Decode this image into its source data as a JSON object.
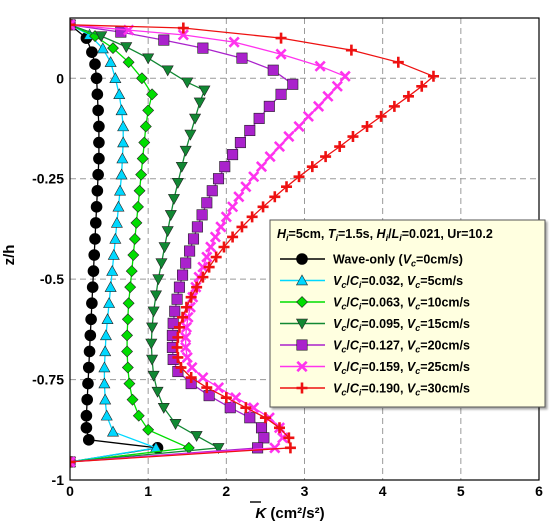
{
  "chart_data": {
    "type": "line",
    "ylabel": "z/h",
    "xlabel_main": "K",
    "xlabel_unit": " (cm²/s²)",
    "xlim": [
      0,
      6
    ],
    "ylim": [
      -1,
      0.15
    ],
    "xticks": [
      0,
      1,
      2,
      3,
      4,
      5,
      6
    ],
    "yticks": [
      {
        "value": 0,
        "label": "0"
      },
      {
        "value": -0.25,
        "label": "-0.25"
      },
      {
        "value": -0.5,
        "label": "-0.5"
      },
      {
        "value": -0.75,
        "label": "-0.75"
      },
      {
        "value": -1,
        "label": "-1"
      }
    ],
    "grid": true,
    "legend_title": "H_i=5cm, T_i=1.5s, H_i/L_i=0.021, Ur=10.2",
    "legend_position": "right",
    "series": [
      {
        "name": "Wave-only (V_c=0cm/s)",
        "color": "#000000",
        "marker": "circle",
        "points": [
          [
            0.0,
            0.133
          ],
          [
            0.21,
            0.1
          ],
          [
            0.28,
            0.065
          ],
          [
            0.32,
            0.035
          ],
          [
            0.34,
            0.0
          ],
          [
            0.35,
            -0.04
          ],
          [
            0.36,
            -0.08
          ],
          [
            0.37,
            -0.12
          ],
          [
            0.37,
            -0.16
          ],
          [
            0.37,
            -0.2
          ],
          [
            0.36,
            -0.24
          ],
          [
            0.35,
            -0.28
          ],
          [
            0.34,
            -0.32
          ],
          [
            0.33,
            -0.36
          ],
          [
            0.32,
            -0.4
          ],
          [
            0.31,
            -0.44
          ],
          [
            0.3,
            -0.48
          ],
          [
            0.29,
            -0.52
          ],
          [
            0.28,
            -0.56
          ],
          [
            0.27,
            -0.6
          ],
          [
            0.26,
            -0.64
          ],
          [
            0.25,
            -0.68
          ],
          [
            0.24,
            -0.72
          ],
          [
            0.23,
            -0.76
          ],
          [
            0.22,
            -0.8
          ],
          [
            0.21,
            -0.84
          ],
          [
            0.21,
            -0.87
          ],
          [
            0.24,
            -0.9
          ],
          [
            1.12,
            -0.92
          ],
          [
            0.0,
            -0.955
          ]
        ]
      },
      {
        "name": "V_c/C_i=0.032, V_c=5cm/s",
        "color": "#00d8ff",
        "marker": "triangle-up",
        "points": [
          [
            0.0,
            0.133
          ],
          [
            0.25,
            0.108
          ],
          [
            0.42,
            0.074
          ],
          [
            0.52,
            0.04
          ],
          [
            0.58,
            0.0
          ],
          [
            0.63,
            -0.04
          ],
          [
            0.66,
            -0.08
          ],
          [
            0.68,
            -0.12
          ],
          [
            0.68,
            -0.16
          ],
          [
            0.67,
            -0.2
          ],
          [
            0.66,
            -0.24
          ],
          [
            0.64,
            -0.28
          ],
          [
            0.62,
            -0.32
          ],
          [
            0.6,
            -0.36
          ],
          [
            0.58,
            -0.4
          ],
          [
            0.56,
            -0.44
          ],
          [
            0.54,
            -0.48
          ],
          [
            0.52,
            -0.52
          ],
          [
            0.5,
            -0.56
          ],
          [
            0.48,
            -0.6
          ],
          [
            0.46,
            -0.64
          ],
          [
            0.45,
            -0.68
          ],
          [
            0.44,
            -0.72
          ],
          [
            0.44,
            -0.76
          ],
          [
            0.45,
            -0.8
          ],
          [
            0.47,
            -0.84
          ],
          [
            0.55,
            -0.88
          ],
          [
            1.1,
            -0.92
          ],
          [
            0.0,
            -0.955
          ]
        ]
      },
      {
        "name": "V_c/C_i=0.063, V_c=10cm/s",
        "color": "#00dd00",
        "marker": "diamond",
        "points": [
          [
            0.0,
            0.133
          ],
          [
            0.32,
            0.105
          ],
          [
            0.55,
            0.075
          ],
          [
            0.75,
            0.04
          ],
          [
            0.92,
            0.0
          ],
          [
            1.05,
            -0.04
          ],
          [
            1.0,
            -0.08
          ],
          [
            0.97,
            -0.12
          ],
          [
            0.95,
            -0.16
          ],
          [
            0.93,
            -0.2
          ],
          [
            0.91,
            -0.24
          ],
          [
            0.89,
            -0.28
          ],
          [
            0.87,
            -0.32
          ],
          [
            0.85,
            -0.36
          ],
          [
            0.83,
            -0.4
          ],
          [
            0.81,
            -0.44
          ],
          [
            0.79,
            -0.48
          ],
          [
            0.77,
            -0.52
          ],
          [
            0.75,
            -0.56
          ],
          [
            0.74,
            -0.6
          ],
          [
            0.73,
            -0.64
          ],
          [
            0.73,
            -0.68
          ],
          [
            0.74,
            -0.72
          ],
          [
            0.76,
            -0.76
          ],
          [
            0.8,
            -0.8
          ],
          [
            0.88,
            -0.84
          ],
          [
            1.0,
            -0.875
          ],
          [
            1.52,
            -0.92
          ],
          [
            0.0,
            -0.955
          ]
        ]
      },
      {
        "name": "V_c/C_i=0.095, V_c=15cm/s",
        "color": "#118833",
        "marker": "triangle-down",
        "points": [
          [
            0.0,
            0.133
          ],
          [
            0.4,
            0.105
          ],
          [
            0.72,
            0.078
          ],
          [
            1.0,
            0.05
          ],
          [
            1.25,
            0.02
          ],
          [
            1.5,
            -0.01
          ],
          [
            1.72,
            -0.03
          ],
          [
            1.66,
            -0.06
          ],
          [
            1.6,
            -0.1
          ],
          [
            1.54,
            -0.14
          ],
          [
            1.48,
            -0.18
          ],
          [
            1.43,
            -0.22
          ],
          [
            1.38,
            -0.26
          ],
          [
            1.33,
            -0.3
          ],
          [
            1.29,
            -0.34
          ],
          [
            1.25,
            -0.38
          ],
          [
            1.21,
            -0.42
          ],
          [
            1.17,
            -0.46
          ],
          [
            1.13,
            -0.5
          ],
          [
            1.1,
            -0.54
          ],
          [
            1.07,
            -0.58
          ],
          [
            1.05,
            -0.62
          ],
          [
            1.04,
            -0.66
          ],
          [
            1.05,
            -0.7
          ],
          [
            1.07,
            -0.74
          ],
          [
            1.12,
            -0.78
          ],
          [
            1.2,
            -0.82
          ],
          [
            1.35,
            -0.86
          ],
          [
            1.62,
            -0.89
          ],
          [
            1.9,
            -0.92
          ],
          [
            0.0,
            -0.955
          ]
        ]
      },
      {
        "name": "V_c/C_i=0.127, V_c=20cm/s",
        "color": "#aa22cc",
        "marker": "square",
        "points": [
          [
            0.0,
            0.133
          ],
          [
            0.65,
            0.115
          ],
          [
            1.2,
            0.095
          ],
          [
            1.7,
            0.075
          ],
          [
            2.2,
            0.05
          ],
          [
            2.6,
            0.02
          ],
          [
            2.85,
            -0.015
          ],
          [
            2.7,
            -0.04
          ],
          [
            2.55,
            -0.07
          ],
          [
            2.42,
            -0.1
          ],
          [
            2.3,
            -0.13
          ],
          [
            2.18,
            -0.16
          ],
          [
            2.08,
            -0.19
          ],
          [
            1.98,
            -0.22
          ],
          [
            1.9,
            -0.25
          ],
          [
            1.82,
            -0.28
          ],
          [
            1.75,
            -0.31
          ],
          [
            1.69,
            -0.34
          ],
          [
            1.63,
            -0.37
          ],
          [
            1.58,
            -0.4
          ],
          [
            1.53,
            -0.43
          ],
          [
            1.48,
            -0.46
          ],
          [
            1.44,
            -0.49
          ],
          [
            1.4,
            -0.52
          ],
          [
            1.37,
            -0.55
          ],
          [
            1.34,
            -0.58
          ],
          [
            1.32,
            -0.61
          ],
          [
            1.31,
            -0.64
          ],
          [
            1.31,
            -0.67
          ],
          [
            1.32,
            -0.7
          ],
          [
            1.38,
            -0.73
          ],
          [
            1.55,
            -0.76
          ],
          [
            1.78,
            -0.79
          ],
          [
            2.05,
            -0.82
          ],
          [
            2.3,
            -0.845
          ],
          [
            2.45,
            -0.87
          ],
          [
            2.48,
            -0.895
          ],
          [
            2.4,
            -0.92
          ],
          [
            0.0,
            -0.955
          ]
        ]
      },
      {
        "name": "V_c/C_i=0.159, V_c=25cm/s",
        "color": "#ff33ee",
        "marker": "cross",
        "points": [
          [
            0.0,
            0.133
          ],
          [
            0.75,
            0.12
          ],
          [
            1.45,
            0.108
          ],
          [
            2.1,
            0.09
          ],
          [
            2.7,
            0.06
          ],
          [
            3.2,
            0.03
          ],
          [
            3.52,
            0.005
          ],
          [
            3.42,
            -0.02
          ],
          [
            3.3,
            -0.045
          ],
          [
            3.18,
            -0.07
          ],
          [
            3.05,
            -0.095
          ],
          [
            2.93,
            -0.12
          ],
          [
            2.8,
            -0.145
          ],
          [
            2.68,
            -0.17
          ],
          [
            2.56,
            -0.195
          ],
          [
            2.45,
            -0.22
          ],
          [
            2.35,
            -0.245
          ],
          [
            2.25,
            -0.27
          ],
          [
            2.16,
            -0.295
          ],
          [
            2.08,
            -0.32
          ],
          [
            2.0,
            -0.345
          ],
          [
            1.93,
            -0.37
          ],
          [
            1.86,
            -0.395
          ],
          [
            1.8,
            -0.42
          ],
          [
            1.75,
            -0.445
          ],
          [
            1.7,
            -0.47
          ],
          [
            1.65,
            -0.495
          ],
          [
            1.61,
            -0.52
          ],
          [
            1.57,
            -0.545
          ],
          [
            1.54,
            -0.57
          ],
          [
            1.51,
            -0.595
          ],
          [
            1.49,
            -0.62
          ],
          [
            1.48,
            -0.645
          ],
          [
            1.48,
            -0.67
          ],
          [
            1.5,
            -0.695
          ],
          [
            1.56,
            -0.72
          ],
          [
            1.7,
            -0.745
          ],
          [
            1.9,
            -0.77
          ],
          [
            2.12,
            -0.795
          ],
          [
            2.35,
            -0.82
          ],
          [
            2.55,
            -0.845
          ],
          [
            2.68,
            -0.87
          ],
          [
            2.72,
            -0.895
          ],
          [
            2.62,
            -0.92
          ],
          [
            0.0,
            -0.955
          ]
        ]
      },
      {
        "name": "V_c/C_i=0.190, V_c=30cm/s",
        "color": "#ee1111",
        "marker": "plus",
        "points": [
          [
            0.0,
            0.133
          ],
          [
            1.45,
            0.125
          ],
          [
            2.7,
            0.1
          ],
          [
            3.6,
            0.07
          ],
          [
            4.2,
            0.04
          ],
          [
            4.65,
            0.005
          ],
          [
            4.5,
            -0.02
          ],
          [
            4.33,
            -0.045
          ],
          [
            4.15,
            -0.07
          ],
          [
            3.98,
            -0.095
          ],
          [
            3.8,
            -0.12
          ],
          [
            3.62,
            -0.145
          ],
          [
            3.45,
            -0.17
          ],
          [
            3.27,
            -0.195
          ],
          [
            3.1,
            -0.22
          ],
          [
            2.93,
            -0.245
          ],
          [
            2.77,
            -0.27
          ],
          [
            2.62,
            -0.295
          ],
          [
            2.47,
            -0.32
          ],
          [
            2.33,
            -0.345
          ],
          [
            2.2,
            -0.37
          ],
          [
            2.08,
            -0.395
          ],
          [
            1.97,
            -0.42
          ],
          [
            1.87,
            -0.445
          ],
          [
            1.78,
            -0.47
          ],
          [
            1.7,
            -0.495
          ],
          [
            1.62,
            -0.52
          ],
          [
            1.55,
            -0.545
          ],
          [
            1.49,
            -0.57
          ],
          [
            1.44,
            -0.595
          ],
          [
            1.4,
            -0.62
          ],
          [
            1.38,
            -0.645
          ],
          [
            1.37,
            -0.67
          ],
          [
            1.38,
            -0.695
          ],
          [
            1.42,
            -0.72
          ],
          [
            1.55,
            -0.745
          ],
          [
            1.75,
            -0.77
          ],
          [
            2.0,
            -0.795
          ],
          [
            2.25,
            -0.82
          ],
          [
            2.5,
            -0.845
          ],
          [
            2.68,
            -0.87
          ],
          [
            2.8,
            -0.895
          ],
          [
            2.82,
            -0.92
          ],
          [
            0.0,
            -0.955
          ]
        ]
      }
    ]
  }
}
